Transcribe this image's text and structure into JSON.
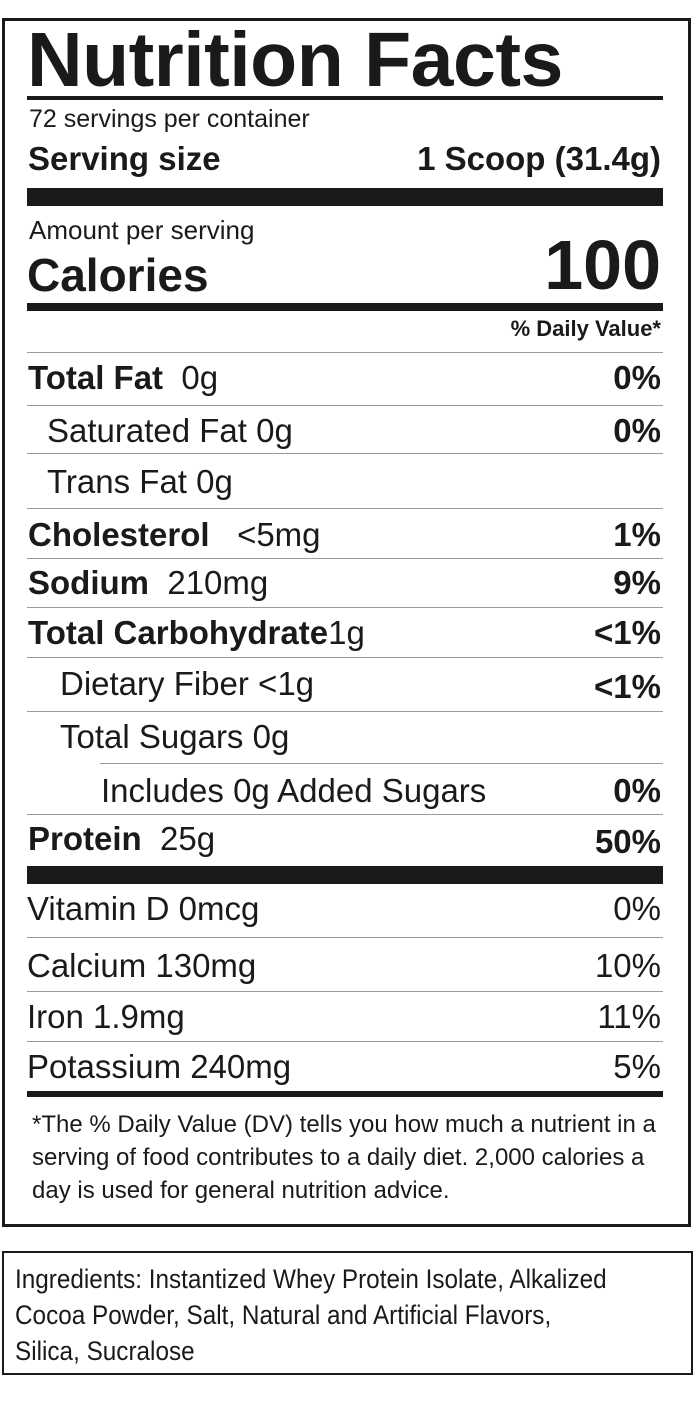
{
  "title": "Nutrition Facts",
  "servings_per_container": "72 servings per container",
  "serving_size_label": "Serving size",
  "serving_size_value": "1 Scoop (31.4g)",
  "amount_per_serving": "Amount per serving",
  "calories_label": "Calories",
  "calories_value": "100",
  "dv_header": "% Daily Value*",
  "nutrients": {
    "total_fat": {
      "label": "Total Fat",
      "amount": "0g",
      "dv": "0%"
    },
    "saturated_fat": {
      "label": "Saturated Fat 0g",
      "dv": "0%"
    },
    "trans_fat": {
      "label": "Trans Fat 0g"
    },
    "cholesterol": {
      "label": "Cholesterol",
      "amount": "<5mg",
      "dv": "1%"
    },
    "sodium": {
      "label": "Sodium",
      "amount": "210mg",
      "dv": "9%"
    },
    "total_carbohydrate": {
      "label": "Total Carbohydrate",
      "amount": "1g",
      "dv": "<1%"
    },
    "dietary_fiber": {
      "label": "Dietary Fiber <1g",
      "dv": "<1%"
    },
    "total_sugars": {
      "label": "Total Sugars 0g"
    },
    "added_sugars": {
      "label": "Includes 0g Added Sugars",
      "dv": "0%"
    },
    "protein": {
      "label": "Protein",
      "amount": "25g",
      "dv": "50%"
    }
  },
  "vitamins": {
    "vitamin_d": {
      "label": "Vitamin D  0mcg",
      "dv": "0%"
    },
    "calcium": {
      "label": "Calcium 130mg",
      "dv": "10%"
    },
    "iron": {
      "label": "Iron  1.9mg",
      "dv": "11%"
    },
    "potassium": {
      "label": "Potassium  240mg",
      "dv": "5%"
    }
  },
  "footnote": "*The % Daily Value (DV) tells you how much a nutrient in a serving of food contributes to a daily diet. 2,000 calories a day is used for general nutrition advice.",
  "ingredients": "Ingredients: Instantized Whey Protein Isolate, Alkalized Cocoa Powder, Salt, Natural and Artificial Flavors, Silica, Sucralose"
}
